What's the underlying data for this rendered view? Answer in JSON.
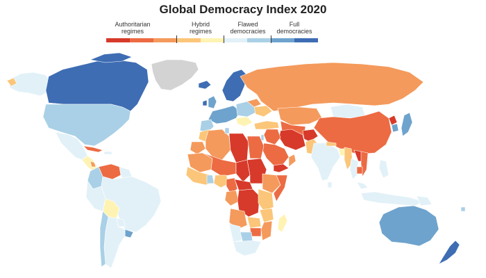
{
  "title": "Global Democracy Index 2020",
  "legend": {
    "categories": [
      {
        "label_line1": "Authoritarian",
        "label_line2": "regimes",
        "colors": [
          "#d73a2a",
          "#ec6b43",
          "#f49a5c"
        ]
      },
      {
        "label_line1": "Hybrid",
        "label_line2": "regimes",
        "colors": [
          "#fbc679",
          "#fff3b4"
        ]
      },
      {
        "label_line1": "Flawed",
        "label_line2": "democracies",
        "colors": [
          "#e2f1f8",
          "#a9d0e6"
        ]
      },
      {
        "label_line1": "Full",
        "label_line2": "democracies",
        "colors": [
          "#6ea3cd",
          "#3e6db3"
        ]
      }
    ]
  },
  "colors": {
    "no_data": "#d3d3d3",
    "authoritarian_low": "#d73a2a",
    "authoritarian_mid": "#ec6b43",
    "authoritarian_high": "#f49a5c",
    "hybrid_low": "#fbc679",
    "hybrid_high": "#fff3b4",
    "flawed_low": "#e2f1f8",
    "flawed_high": "#a9d0e6",
    "full_low": "#6ea3cd",
    "full_high": "#3e6db3"
  }
}
